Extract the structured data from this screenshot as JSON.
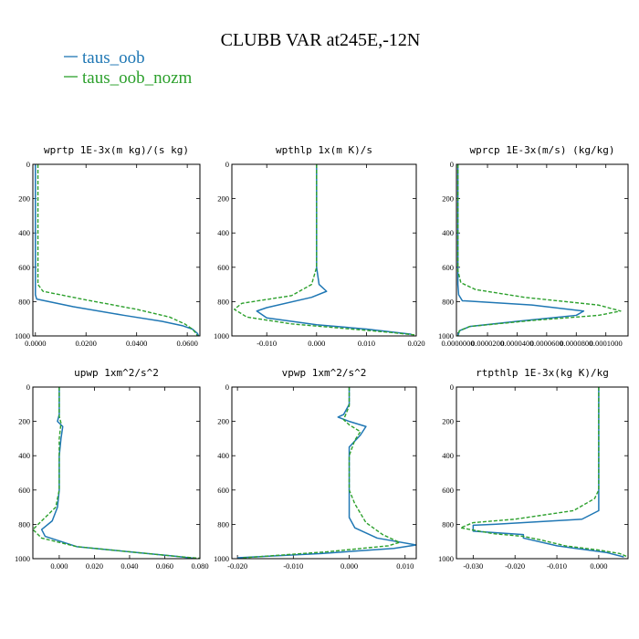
{
  "figure": {
    "title": "CLUBB VAR at245E,-12N",
    "legend": [
      {
        "name": "taus_oob",
        "color": "#1f77b4",
        "dash": "solid"
      },
      {
        "name": "taus_oob_nozm",
        "color": "#2ca02c",
        "dash": "dashed"
      }
    ]
  },
  "chart_data": [
    {
      "type": "line",
      "title": "wprtp  1E-3x(m kg)/(s kg)",
      "xlim": [
        -0.001,
        0.065
      ],
      "ylim": [
        1000,
        0
      ],
      "xticks": [
        0,
        0.02,
        0.04,
        0.06
      ],
      "xtick_labels": [
        "0.0000",
        "0.0200",
        "0.0400",
        "0.0600"
      ],
      "yticks": [
        0,
        200,
        400,
        600,
        800,
        1000
      ],
      "grid": false,
      "series": [
        {
          "name": "taus_oob",
          "points": [
            [
              0,
              0
            ],
            [
              0,
              300
            ],
            [
              0,
              600
            ],
            [
              0,
              760
            ],
            [
              0.0005,
              785
            ],
            [
              0.015,
              830
            ],
            [
              0.035,
              880
            ],
            [
              0.05,
              915
            ],
            [
              0.058,
              940
            ],
            [
              0.062,
              960
            ],
            [
              0.064,
              985
            ],
            [
              0.0645,
              1000
            ]
          ]
        },
        {
          "name": "taus_oob_nozm",
          "points": [
            [
              0.001,
              0
            ],
            [
              0.001,
              300
            ],
            [
              0.001,
              600
            ],
            [
              0.001,
              700
            ],
            [
              0.003,
              740
            ],
            [
              0.02,
              790
            ],
            [
              0.04,
              845
            ],
            [
              0.053,
              890
            ],
            [
              0.059,
              930
            ],
            [
              0.062,
              960
            ],
            [
              0.0635,
              985
            ],
            [
              0.064,
              1000
            ]
          ]
        }
      ]
    },
    {
      "type": "line",
      "title": "wpthlp  1x(m K)/s",
      "xlim": [
        -0.017,
        0.02
      ],
      "ylim": [
        1000,
        0
      ],
      "xticks": [
        -0.01,
        0,
        0.01,
        0.02
      ],
      "xtick_labels": [
        "-0.010",
        "0.000",
        "0.010",
        "0.020"
      ],
      "yticks": [
        0,
        200,
        400,
        600,
        800,
        1000
      ],
      "grid": false,
      "series": [
        {
          "name": "taus_oob",
          "points": [
            [
              0,
              0
            ],
            [
              0,
              200
            ],
            [
              0,
              400
            ],
            [
              0,
              600
            ],
            [
              0.0005,
              700
            ],
            [
              0.002,
              740
            ],
            [
              -0.001,
              775
            ],
            [
              -0.01,
              835
            ],
            [
              -0.012,
              855
            ],
            [
              -0.01,
              895
            ],
            [
              0,
              935
            ],
            [
              0.01,
              960
            ],
            [
              0.019,
              990
            ]
          ]
        },
        {
          "name": "taus_oob_nozm",
          "points": [
            [
              0,
              0
            ],
            [
              0,
              200
            ],
            [
              0,
              400
            ],
            [
              0,
              600
            ],
            [
              -0.001,
              700
            ],
            [
              -0.005,
              765
            ],
            [
              -0.015,
              810
            ],
            [
              -0.0165,
              845
            ],
            [
              -0.014,
              890
            ],
            [
              -0.005,
              930
            ],
            [
              0.005,
              955
            ],
            [
              0.015,
              980
            ],
            [
              0.02,
              995
            ]
          ]
        }
      ]
    },
    {
      "type": "line",
      "title": "wprcp  1E-3x(m/s) (kg/kg)",
      "xlim": [
        -1e-06,
        0.000115
      ],
      "ylim": [
        1000,
        0
      ],
      "xticks": [
        0,
        2e-05,
        4e-05,
        6e-05,
        8e-05,
        0.0001
      ],
      "xtick_labels": [
        "0.0000000",
        "0.0000200",
        "0.0000400",
        "0.0000600",
        "0.0000800",
        "0.0001000"
      ],
      "yticks": [
        0,
        200,
        400,
        600,
        800,
        1000
      ],
      "grid": false,
      "series": [
        {
          "name": "taus_oob",
          "points": [
            [
              0,
              0
            ],
            [
              0,
              400
            ],
            [
              0,
              700
            ],
            [
              5e-07,
              760
            ],
            [
              3e-06,
              795
            ],
            [
              5e-05,
              820
            ],
            [
              8.5e-05,
              855
            ],
            [
              8e-05,
              880
            ],
            [
              4e-05,
              915
            ],
            [
              8e-06,
              945
            ],
            [
              1e-06,
              970
            ],
            [
              0,
              1000
            ]
          ]
        },
        {
          "name": "taus_oob_nozm",
          "points": [
            [
              0,
              0
            ],
            [
              0,
              400
            ],
            [
              0,
              620
            ],
            [
              2e-06,
              690
            ],
            [
              1.2e-05,
              730
            ],
            [
              4.5e-05,
              775
            ],
            [
              9.5e-05,
              820
            ],
            [
              0.00011,
              855
            ],
            [
              9.5e-05,
              880
            ],
            [
              5e-05,
              910
            ],
            [
              8e-06,
              945
            ],
            [
              1e-06,
              970
            ],
            [
              0,
              1000
            ]
          ]
        }
      ]
    },
    {
      "type": "line",
      "title": "upwp  1xm^2/s^2",
      "xlim": [
        -0.015,
        0.08
      ],
      "ylim": [
        1000,
        0
      ],
      "xticks": [
        0,
        0.02,
        0.04,
        0.06,
        0.08
      ],
      "xtick_labels": [
        "0.000",
        "0.020",
        "0.040",
        "0.060",
        "0.080"
      ],
      "yticks": [
        0,
        200,
        400,
        600,
        800,
        1000
      ],
      "grid": false,
      "series": [
        {
          "name": "taus_oob",
          "points": [
            [
              0,
              0
            ],
            [
              0,
              160
            ],
            [
              -0.001,
              200
            ],
            [
              0.002,
              230
            ],
            [
              0.001,
              300
            ],
            [
              0,
              400
            ],
            [
              0,
              600
            ],
            [
              -0.001,
              700
            ],
            [
              -0.004,
              780
            ],
            [
              -0.01,
              830
            ],
            [
              -0.008,
              870
            ],
            [
              0.01,
              930
            ],
            [
              0.04,
              960
            ],
            [
              0.065,
              985
            ],
            [
              0.077,
              998
            ]
          ]
        },
        {
          "name": "taus_oob_nozm",
          "points": [
            [
              0,
              0
            ],
            [
              0,
              170
            ],
            [
              0.001,
              210
            ],
            [
              0,
              300
            ],
            [
              0,
              400
            ],
            [
              0,
              600
            ],
            [
              -0.002,
              700
            ],
            [
              -0.008,
              760
            ],
            [
              -0.015,
              830
            ],
            [
              -0.01,
              880
            ],
            [
              0.01,
              930
            ],
            [
              0.04,
              960
            ],
            [
              0.065,
              985
            ],
            [
              0.08,
              998
            ]
          ]
        }
      ]
    },
    {
      "type": "line",
      "title": "vpwp  1xm^2/s^2",
      "xlim": [
        -0.021,
        0.012
      ],
      "ylim": [
        1000,
        0
      ],
      "xticks": [
        -0.02,
        -0.01,
        0,
        0.01
      ],
      "xtick_labels": [
        "-0.020",
        "-0.010",
        "0.000",
        "0.010"
      ],
      "yticks": [
        0,
        200,
        400,
        600,
        800,
        1000
      ],
      "grid": false,
      "series": [
        {
          "name": "taus_oob",
          "points": [
            [
              0,
              0
            ],
            [
              0,
              100
            ],
            [
              -0.001,
              160
            ],
            [
              -0.002,
              175
            ],
            [
              0,
              200
            ],
            [
              0.003,
              230
            ],
            [
              0.002,
              280
            ],
            [
              0,
              350
            ],
            [
              0,
              400
            ],
            [
              0,
              600
            ],
            [
              0,
              700
            ],
            [
              0,
              760
            ],
            [
              0.001,
              820
            ],
            [
              0.005,
              880
            ],
            [
              0.012,
              920
            ],
            [
              0.008,
              940
            ],
            [
              -0.005,
              970
            ],
            [
              -0.02,
              995
            ]
          ]
        },
        {
          "name": "taus_oob_nozm",
          "points": [
            [
              0,
              0
            ],
            [
              0,
              110
            ],
            [
              -0.001,
              190
            ],
            [
              0,
              220
            ],
            [
              0.002,
              260
            ],
            [
              0.001,
              310
            ],
            [
              0,
              400
            ],
            [
              0,
              600
            ],
            [
              0.001,
              680
            ],
            [
              0.003,
              790
            ],
            [
              0.006,
              860
            ],
            [
              0.009,
              905
            ],
            [
              0.007,
              925
            ],
            [
              -0.004,
              960
            ],
            [
              -0.019,
              995
            ]
          ]
        }
      ]
    },
    {
      "type": "line",
      "title": "rtpthlp  1E-3x(kg K)/kg",
      "xlim": [
        -0.034,
        0.007
      ],
      "ylim": [
        1000,
        0
      ],
      "xticks": [
        -0.03,
        -0.02,
        -0.01,
        0
      ],
      "xtick_labels": [
        "-0.030",
        "-0.020",
        "-0.010",
        "0.000"
      ],
      "yticks": [
        0,
        200,
        400,
        600,
        800,
        1000
      ],
      "grid": false,
      "series": [
        {
          "name": "taus_oob",
          "points": [
            [
              0,
              0
            ],
            [
              0,
              300
            ],
            [
              0,
              600
            ],
            [
              0,
              720
            ],
            [
              -0.004,
              770
            ],
            [
              -0.025,
              800
            ],
            [
              -0.03,
              805
            ],
            [
              -0.03,
              840
            ],
            [
              -0.018,
              860
            ],
            [
              -0.018,
              880
            ],
            [
              -0.01,
              925
            ],
            [
              -0.004,
              945
            ],
            [
              0.002,
              965
            ],
            [
              0.006,
              990
            ]
          ]
        },
        {
          "name": "taus_oob_nozm",
          "points": [
            [
              0,
              0
            ],
            [
              0,
              300
            ],
            [
              0,
              600
            ],
            [
              -0.001,
              650
            ],
            [
              -0.006,
              720
            ],
            [
              -0.02,
              770
            ],
            [
              -0.03,
              790
            ],
            [
              -0.033,
              820
            ],
            [
              -0.025,
              855
            ],
            [
              -0.018,
              870
            ],
            [
              -0.014,
              890
            ],
            [
              -0.008,
              925
            ],
            [
              0,
              950
            ],
            [
              0.005,
              970
            ],
            [
              0.007,
              990
            ]
          ]
        }
      ]
    }
  ]
}
